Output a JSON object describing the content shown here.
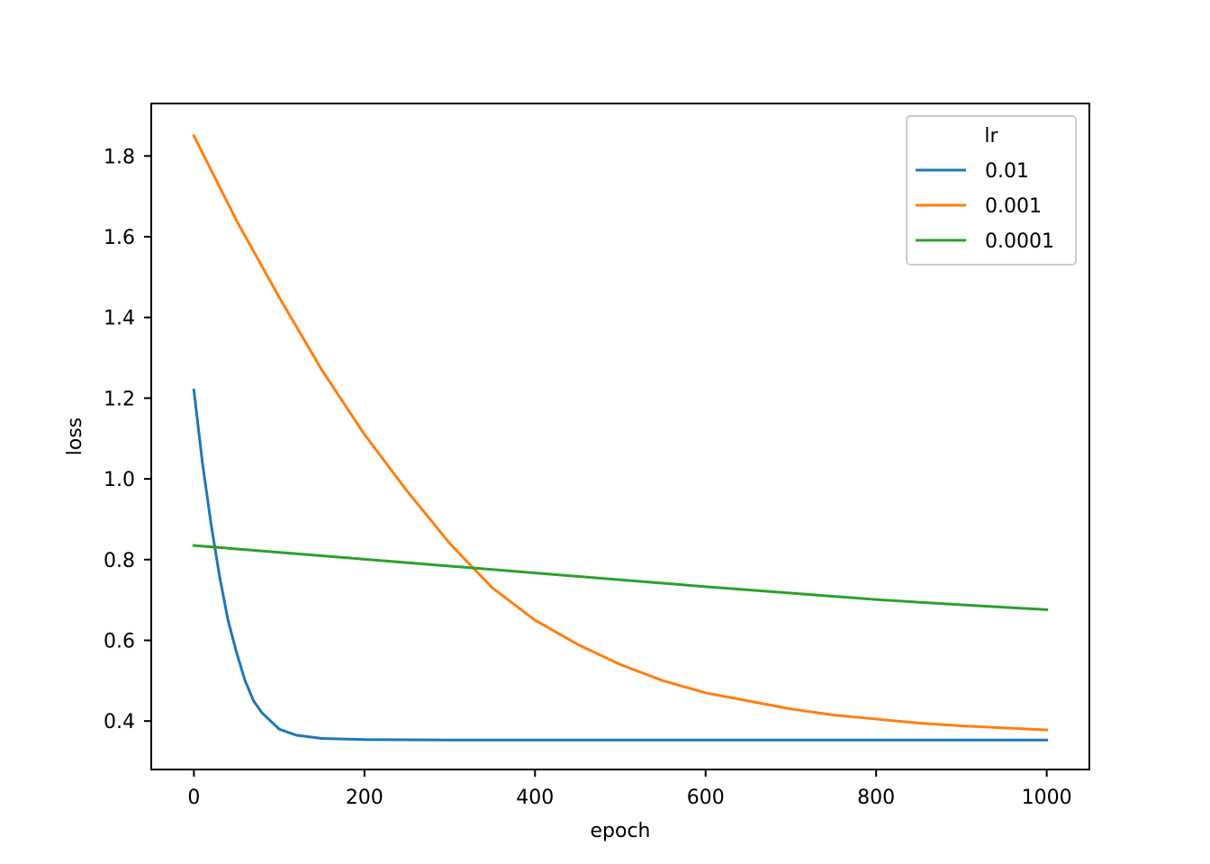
{
  "chart_data": {
    "type": "line",
    "xlabel": "epoch",
    "ylabel": "loss",
    "xlim": [
      -50,
      1050
    ],
    "ylim": [
      0.28,
      1.93
    ],
    "x_ticks": [
      0,
      200,
      400,
      600,
      800,
      1000
    ],
    "x_tick_labels": [
      "0",
      "200",
      "400",
      "600",
      "800",
      "1000"
    ],
    "y_ticks": [
      0.4,
      0.6,
      0.8,
      1.0,
      1.2,
      1.4,
      1.6,
      1.8
    ],
    "y_tick_labels": [
      "0.4",
      "0.6",
      "0.8",
      "1.0",
      "1.2",
      "1.4",
      "1.6",
      "1.8"
    ],
    "grid": false,
    "legend": {
      "title": "lr",
      "placement": "top-right"
    },
    "series": [
      {
        "name": "0.01",
        "color": "#1f77b4",
        "x": [
          0,
          10,
          20,
          30,
          40,
          50,
          60,
          70,
          80,
          100,
          120,
          150,
          200,
          300,
          400,
          500,
          600,
          700,
          800,
          900,
          1000
        ],
        "y": [
          1.22,
          1.04,
          0.89,
          0.76,
          0.65,
          0.57,
          0.5,
          0.45,
          0.42,
          0.38,
          0.365,
          0.357,
          0.354,
          0.353,
          0.353,
          0.353,
          0.353,
          0.353,
          0.353,
          0.353,
          0.353
        ]
      },
      {
        "name": "0.001",
        "color": "#ff7f0e",
        "x": [
          0,
          50,
          100,
          150,
          200,
          250,
          300,
          350,
          400,
          450,
          500,
          550,
          600,
          650,
          700,
          750,
          800,
          850,
          900,
          950,
          1000
        ],
        "y": [
          1.85,
          1.64,
          1.45,
          1.27,
          1.11,
          0.97,
          0.84,
          0.73,
          0.65,
          0.59,
          0.54,
          0.5,
          0.47,
          0.45,
          0.43,
          0.415,
          0.405,
          0.395,
          0.388,
          0.383,
          0.378
        ]
      },
      {
        "name": "0.0001",
        "color": "#2ca02c",
        "x": [
          0,
          100,
          200,
          300,
          400,
          500,
          600,
          700,
          800,
          900,
          1000
        ],
        "y": [
          0.835,
          0.818,
          0.801,
          0.784,
          0.767,
          0.75,
          0.733,
          0.717,
          0.701,
          0.688,
          0.676
        ]
      }
    ]
  }
}
